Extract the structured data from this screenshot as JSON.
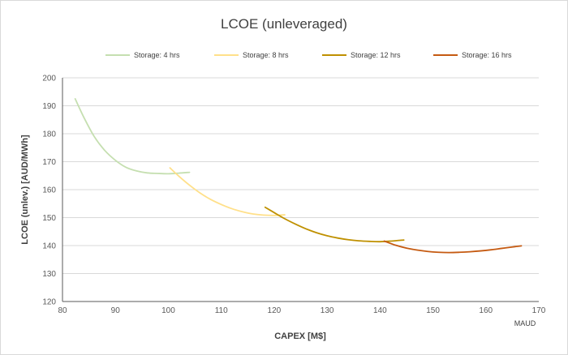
{
  "chart_data": {
    "type": "line",
    "title": "LCOE (unleveraged)",
    "xlabel": "CAPEX  [M$]",
    "ylabel": "LCOE  (unlev.)  [AUD/MWh]",
    "x_unit_note": "MAUD",
    "xlim": [
      80,
      170
    ],
    "ylim": [
      120,
      200
    ],
    "xticks": [
      80,
      90,
      100,
      110,
      120,
      130,
      140,
      150,
      160,
      170
    ],
    "yticks": [
      120,
      130,
      140,
      150,
      160,
      170,
      180,
      190,
      200
    ],
    "grid": "horizontal",
    "legend_position": "top",
    "series": [
      {
        "name": "Storage: 4 hrs",
        "color": "#c5dfb0",
        "x": [
          82.4,
          84,
          86,
          88,
          90,
          92,
          94,
          96,
          98,
          100,
          102,
          104
        ],
        "y": [
          192.5,
          186,
          179,
          174,
          170.5,
          168,
          166.7,
          166,
          165.8,
          165.7,
          165.9,
          166.2
        ]
      },
      {
        "name": "Storage: 8 hrs",
        "color": "#ffe08a",
        "x": [
          100.3,
          102,
          104,
          106,
          108,
          110,
          112,
          114,
          116,
          118,
          120,
          122
        ],
        "y": [
          167.8,
          164.8,
          161.6,
          158.8,
          156.5,
          154.7,
          153.2,
          152.1,
          151.3,
          150.9,
          150.8,
          151
        ]
      },
      {
        "name": "Storage: 12 hrs",
        "color": "#bf9000",
        "x": [
          118.3,
          120,
          122,
          124,
          126,
          128,
          130,
          132,
          134,
          136,
          138,
          140,
          142,
          144.5
        ],
        "y": [
          153.7,
          151.8,
          149.6,
          147.7,
          146,
          144.6,
          143.5,
          142.7,
          142.1,
          141.7,
          141.5,
          141.4,
          141.6,
          142
        ]
      },
      {
        "name": "Storage: 16 hrs",
        "color": "#c55a11",
        "x": [
          140.8,
          143,
          145,
          147,
          149,
          151,
          153,
          155,
          157,
          159,
          161,
          163,
          165,
          166.7
        ],
        "y": [
          141.6,
          140.1,
          139.1,
          138.4,
          137.9,
          137.6,
          137.5,
          137.6,
          137.8,
          138.1,
          138.5,
          139,
          139.5,
          139.9
        ]
      }
    ]
  }
}
